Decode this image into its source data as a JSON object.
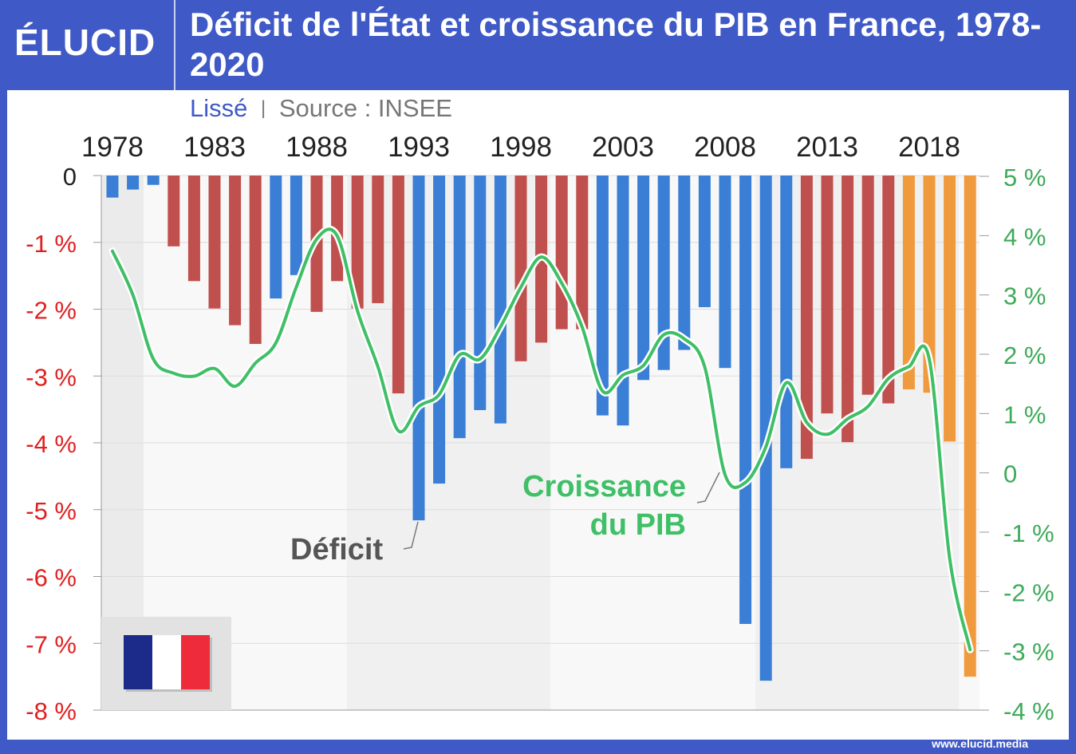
{
  "header": {
    "logo": "ÉLUCID",
    "title": "Déficit de l'État et croissance du PIB en France, 1978-2020"
  },
  "subtitle": {
    "smoothed": "Lissé",
    "separator": "|",
    "source": "Source : INSEE"
  },
  "footer": {
    "url": "www.elucid.media"
  },
  "colors": {
    "frame": "#3f5ac6",
    "deficit_red": "#c0504d",
    "deficit_blue": "#3a7fd5",
    "deficit_orange": "#f09a3e",
    "gdp_line": "#3fbf66",
    "left_axis": "#e02020",
    "right_axis": "#3faa5a"
  },
  "chart_data": {
    "type": "bar+line",
    "title": "Déficit de l'État et croissance du PIB en France, 1978-2020",
    "x_tick_labels": [
      "1978",
      "1983",
      "1988",
      "1993",
      "1998",
      "2003",
      "2008",
      "2013",
      "2018"
    ],
    "left_axis": {
      "ylim": [
        -8,
        0
      ],
      "tick_labels": [
        "0",
        "-1 %",
        "-2 %",
        "-3 %",
        "-4 %",
        "-5 %",
        "-6 %",
        "-7 %",
        "-8 %"
      ]
    },
    "right_axis": {
      "ylim": [
        -4,
        5
      ],
      "tick_labels": [
        "5 %",
        "4 %",
        "3 %",
        "2 %",
        "1 %",
        "0",
        "-1 %",
        "-2 %",
        "-3 %",
        "-4 %"
      ]
    },
    "grid": true,
    "years": [
      1978,
      1979,
      1980,
      1981,
      1982,
      1983,
      1984,
      1985,
      1986,
      1987,
      1988,
      1989,
      1990,
      1991,
      1992,
      1993,
      1994,
      1995,
      1996,
      1997,
      1998,
      1999,
      2000,
      2001,
      2002,
      2003,
      2004,
      2005,
      2006,
      2007,
      2008,
      2009,
      2010,
      2011,
      2012,
      2013,
      2014,
      2015,
      2016,
      2017,
      2018,
      2019,
      2020
    ],
    "series": [
      {
        "name": "Déficit",
        "type": "bar",
        "axis": "left",
        "values": [
          -0.33,
          -0.21,
          -0.14,
          -1.06,
          -1.58,
          -1.99,
          -2.24,
          -2.52,
          -1.84,
          -1.49,
          -2.04,
          -1.58,
          -1.99,
          -1.91,
          -3.26,
          -5.16,
          -4.61,
          -3.93,
          -3.51,
          -3.71,
          -2.78,
          -2.5,
          -2.3,
          -2.3,
          -3.59,
          -3.74,
          -3.06,
          -2.91,
          -2.61,
          -1.97,
          -2.88,
          -6.71,
          -7.56,
          -4.38,
          -4.24,
          -3.56,
          -3.99,
          -3.28,
          -3.41,
          -3.2,
          -3.25,
          -3.98,
          -7.5
        ],
        "color_groups": [
          "blue",
          "blue",
          "blue",
          "red",
          "red",
          "red",
          "red",
          "red",
          "blue",
          "blue",
          "red",
          "red",
          "red",
          "red",
          "red",
          "blue",
          "blue",
          "blue",
          "blue",
          "blue",
          "red",
          "red",
          "red",
          "red",
          "blue",
          "blue",
          "blue",
          "blue",
          "blue",
          "blue",
          "blue",
          "blue",
          "blue",
          "blue",
          "red",
          "red",
          "red",
          "red",
          "red",
          "orange",
          "orange",
          "orange",
          "orange"
        ]
      },
      {
        "name": "Croissance du PIB",
        "type": "line",
        "axis": "right",
        "smoothed": true,
        "values": [
          3.74,
          3.0,
          1.92,
          1.68,
          1.63,
          1.76,
          1.46,
          1.85,
          2.19,
          3.13,
          3.94,
          4.0,
          2.73,
          1.79,
          0.71,
          1.12,
          1.32,
          1.99,
          1.92,
          2.46,
          3.13,
          3.64,
          3.2,
          2.46,
          1.38,
          1.65,
          1.81,
          2.33,
          2.26,
          1.79,
          -0.03,
          -0.16,
          0.44,
          1.52,
          0.85,
          0.65,
          0.91,
          1.12,
          1.59,
          1.79,
          1.92,
          -1.44,
          -2.98
        ]
      }
    ],
    "annotations": {
      "deficit": "Déficit",
      "gdp_line1": "Croissance",
      "gdp_line2": "du PIB"
    }
  }
}
